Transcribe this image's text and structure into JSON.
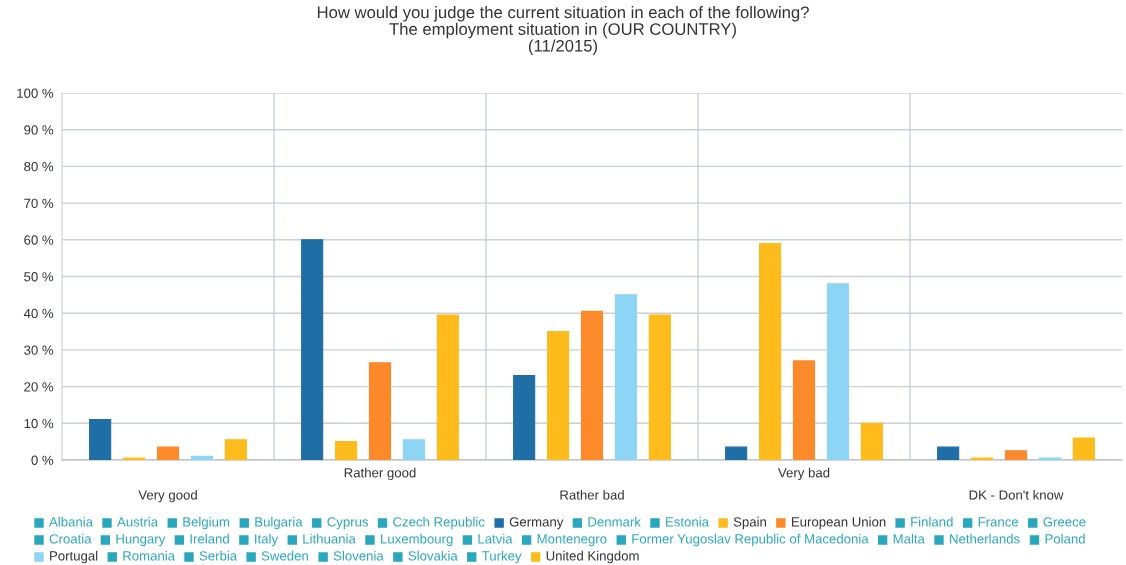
{
  "chart_data": {
    "type": "bar",
    "title": "How would you judge the current situation in each of the following?\nThe employment situation in (OUR COUNTRY)\n(11/2015)",
    "categories": [
      "Very good",
      "Rather good",
      "Rather bad",
      "Very bad",
      "DK - Don't know"
    ],
    "ylim": [
      0,
      100
    ],
    "yticks": [
      {
        "value": 0,
        "label": "0 %"
      },
      {
        "value": 10,
        "label": "10 %"
      },
      {
        "value": 20,
        "label": "20 %"
      },
      {
        "value": 30,
        "label": "30 %"
      },
      {
        "value": 40,
        "label": "40 %"
      },
      {
        "value": 50,
        "label": "50 %"
      },
      {
        "value": 60,
        "label": "60 %"
      },
      {
        "value": 70,
        "label": "70 %"
      },
      {
        "value": 80,
        "label": "80 %"
      },
      {
        "value": 90,
        "label": "90 %"
      },
      {
        "value": 100,
        "label": "100 %"
      }
    ],
    "grid": true,
    "legend": "bottom",
    "series": [
      {
        "name": "Albania",
        "color": "#2aa7bd",
        "values": [
          null,
          null,
          null,
          null,
          null
        ]
      },
      {
        "name": "Austria",
        "color": "#2aa7bd",
        "values": [
          null,
          null,
          null,
          null,
          null
        ]
      },
      {
        "name": "Belgium",
        "color": "#2aa7bd",
        "values": [
          null,
          null,
          null,
          null,
          null
        ]
      },
      {
        "name": "Bulgaria",
        "color": "#2aa7bd",
        "values": [
          null,
          null,
          null,
          null,
          null
        ]
      },
      {
        "name": "Cyprus",
        "color": "#2aa7bd",
        "values": [
          null,
          null,
          null,
          null,
          null
        ]
      },
      {
        "name": "Czech Republic",
        "color": "#2aa7bd",
        "values": [
          null,
          null,
          null,
          null,
          null
        ]
      },
      {
        "name": "Germany",
        "color": "#1f6ea6",
        "values": [
          11,
          60,
          23,
          3.5,
          3.5
        ]
      },
      {
        "name": "Denmark",
        "color": "#2aa7bd",
        "values": [
          null,
          null,
          null,
          null,
          null
        ]
      },
      {
        "name": "Estonia",
        "color": "#2aa7bd",
        "values": [
          null,
          null,
          null,
          null,
          null
        ]
      },
      {
        "name": "Spain",
        "color": "#fdbb1c",
        "values": [
          0.5,
          5,
          35,
          59,
          0.5
        ]
      },
      {
        "name": "European Union",
        "color": "#fd8a2a",
        "values": [
          3.5,
          26.5,
          40.5,
          27,
          2.5
        ]
      },
      {
        "name": "Finland",
        "color": "#2aa7bd",
        "values": [
          null,
          null,
          null,
          null,
          null
        ]
      },
      {
        "name": "France",
        "color": "#2aa7bd",
        "values": [
          null,
          null,
          null,
          null,
          null
        ]
      },
      {
        "name": "Greece",
        "color": "#2aa7bd",
        "values": [
          null,
          null,
          null,
          null,
          null
        ]
      },
      {
        "name": "Croatia",
        "color": "#2aa7bd",
        "values": [
          null,
          null,
          null,
          null,
          null
        ]
      },
      {
        "name": "Hungary",
        "color": "#2aa7bd",
        "values": [
          null,
          null,
          null,
          null,
          null
        ]
      },
      {
        "name": "Ireland",
        "color": "#2aa7bd",
        "values": [
          null,
          null,
          null,
          null,
          null
        ]
      },
      {
        "name": "Italy",
        "color": "#2aa7bd",
        "values": [
          null,
          null,
          null,
          null,
          null
        ]
      },
      {
        "name": "Lithuania",
        "color": "#2aa7bd",
        "values": [
          null,
          null,
          null,
          null,
          null
        ]
      },
      {
        "name": "Luxembourg",
        "color": "#2aa7bd",
        "values": [
          null,
          null,
          null,
          null,
          null
        ]
      },
      {
        "name": "Latvia",
        "color": "#2aa7bd",
        "values": [
          null,
          null,
          null,
          null,
          null
        ]
      },
      {
        "name": "Montenegro",
        "color": "#2aa7bd",
        "values": [
          null,
          null,
          null,
          null,
          null
        ]
      },
      {
        "name": "Former Yugoslav Republic of Macedonia",
        "color": "#2aa7bd",
        "values": [
          null,
          null,
          null,
          null,
          null
        ]
      },
      {
        "name": "Malta",
        "color": "#2aa7bd",
        "values": [
          null,
          null,
          null,
          null,
          null
        ]
      },
      {
        "name": "Netherlands",
        "color": "#2aa7bd",
        "values": [
          null,
          null,
          null,
          null,
          null
        ]
      },
      {
        "name": "Poland",
        "color": "#2aa7bd",
        "values": [
          null,
          null,
          null,
          null,
          null
        ]
      },
      {
        "name": "Portugal",
        "color": "#8dd5f5",
        "values": [
          1,
          5.5,
          45,
          48,
          0.5
        ]
      },
      {
        "name": "Romania",
        "color": "#2aa7bd",
        "values": [
          null,
          null,
          null,
          null,
          null
        ]
      },
      {
        "name": "Serbia",
        "color": "#2aa7bd",
        "values": [
          null,
          null,
          null,
          null,
          null
        ]
      },
      {
        "name": "Sweden",
        "color": "#2aa7bd",
        "values": [
          null,
          null,
          null,
          null,
          null
        ]
      },
      {
        "name": "Slovenia",
        "color": "#2aa7bd",
        "values": [
          null,
          null,
          null,
          null,
          null
        ]
      },
      {
        "name": "Slovakia",
        "color": "#2aa7bd",
        "values": [
          null,
          null,
          null,
          null,
          null
        ]
      },
      {
        "name": "Turkey",
        "color": "#2aa7bd",
        "values": [
          null,
          null,
          null,
          null,
          null
        ]
      },
      {
        "name": "United Kingdom",
        "color": "#fdbb1c",
        "values": [
          5.5,
          39.5,
          39.5,
          10,
          6
        ]
      }
    ]
  }
}
